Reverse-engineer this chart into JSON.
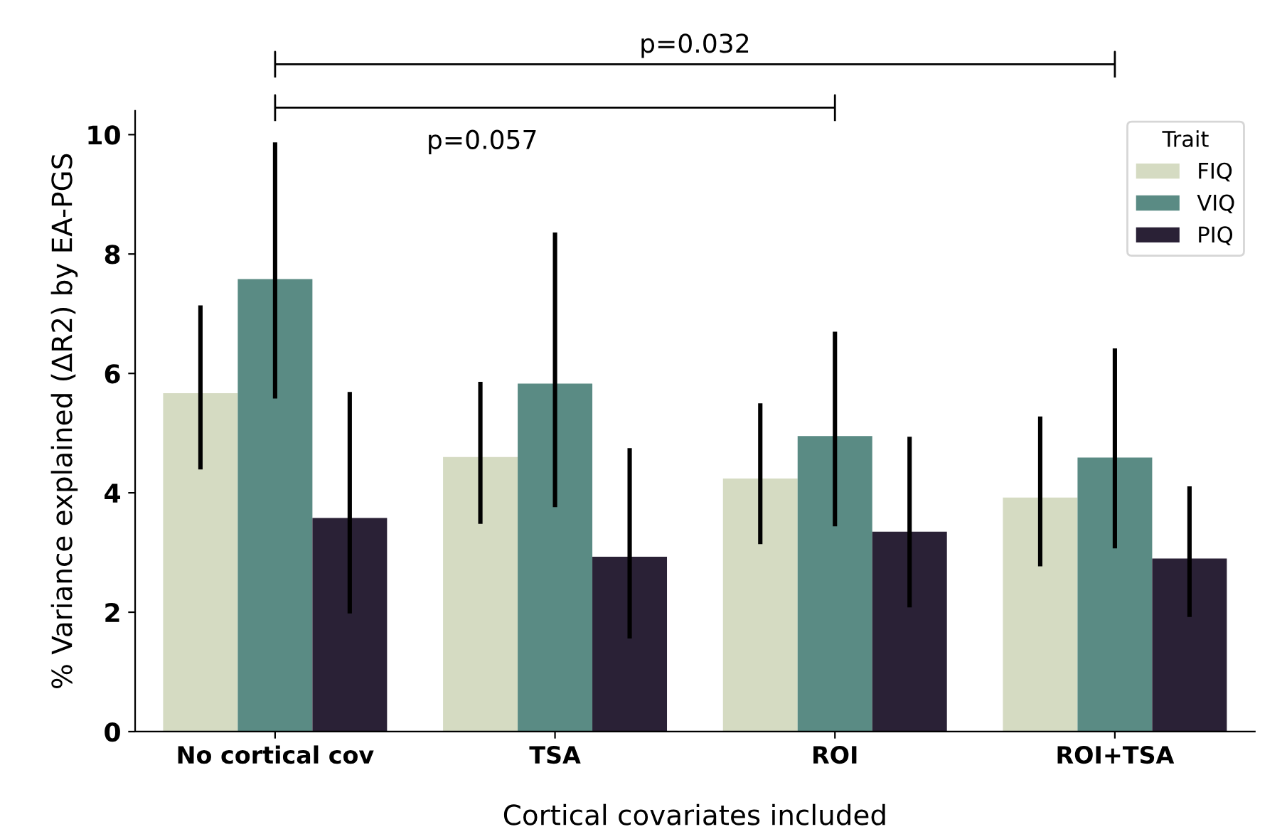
{
  "chart_data": {
    "type": "bar",
    "xlabel": "Cortical covariates included",
    "ylabel": "% Variance explained (ΔR2) by EA-PGS",
    "legend_title": "Trait",
    "legend": "top right",
    "grid": false,
    "categories": [
      "No cortical cov",
      "TSA",
      "ROI",
      "ROI+TSA"
    ],
    "series": [
      {
        "name": "FIQ",
        "color": "#d5dbc2",
        "values": [
          5.67,
          4.6,
          4.24,
          3.92
        ],
        "errors": [
          [
            4.39,
            7.14
          ],
          [
            3.48,
            5.86
          ],
          [
            3.14,
            5.5
          ],
          [
            2.77,
            5.28
          ]
        ]
      },
      {
        "name": "VIQ",
        "color": "#5a8b84",
        "values": [
          7.58,
          5.83,
          4.95,
          4.59
        ],
        "errors": [
          [
            5.58,
            9.87
          ],
          [
            3.76,
            8.36
          ],
          [
            3.44,
            6.7
          ],
          [
            3.07,
            6.42
          ]
        ]
      },
      {
        "name": "PIQ",
        "color": "#2a2136",
        "values": [
          3.58,
          2.93,
          3.35,
          2.9
        ],
        "errors": [
          [
            1.98,
            5.69
          ],
          [
            1.56,
            4.75
          ],
          [
            2.08,
            4.94
          ],
          [
            1.92,
            4.11
          ]
        ]
      }
    ],
    "ylim": [
      0,
      10.4
    ],
    "yticks": [
      0,
      2,
      4,
      6,
      8,
      10
    ],
    "annotations": [
      "p=0.032",
      "p=0.057"
    ]
  }
}
